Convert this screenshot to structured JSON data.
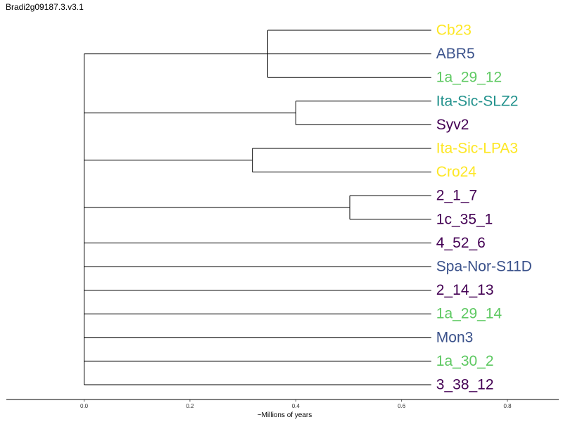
{
  "chart_data": {
    "type": "dendrogram",
    "title": "Bradi2g09187.3.v3.1",
    "xlabel": "~Millions of years",
    "xlim": [
      -0.147,
      0.897
    ],
    "xticks": [
      0.0,
      0.2,
      0.4,
      0.6,
      0.8
    ],
    "xtick_labels": [
      "0.0",
      "0.2",
      "0.4",
      "0.6",
      "0.8"
    ],
    "tip_depth": 0.656,
    "colors": {
      "yellow": "#fde725",
      "blue": "#3b528b",
      "green": "#5ec962",
      "teal": "#21918c",
      "purple": "#440154"
    },
    "tips": [
      {
        "label": "Cb23",
        "color": "#fde725"
      },
      {
        "label": "ABR5",
        "color": "#3b528b"
      },
      {
        "label": "1a_29_12",
        "color": "#5ec962"
      },
      {
        "label": "Ita-Sic-SLZ2",
        "color": "#21918c"
      },
      {
        "label": "Syv2",
        "color": "#440154"
      },
      {
        "label": "Ita-Sic-LPA3",
        "color": "#fde725"
      },
      {
        "label": "Cro24",
        "color": "#fde725"
      },
      {
        "label": "2_1_7",
        "color": "#440154"
      },
      {
        "label": "1c_35_1",
        "color": "#440154"
      },
      {
        "label": "4_52_6",
        "color": "#440154"
      },
      {
        "label": "Spa-Nor-S11D",
        "color": "#3b528b"
      },
      {
        "label": "2_14_13",
        "color": "#440154"
      },
      {
        "label": "1a_29_14",
        "color": "#5ec962"
      },
      {
        "label": "Mon3",
        "color": "#3b528b"
      },
      {
        "label": "1a_30_2",
        "color": "#5ec962"
      },
      {
        "label": "3_38_12",
        "color": "#440154"
      }
    ],
    "clades": [
      {
        "node_height": 0.347,
        "tips": [
          0,
          2
        ]
      },
      {
        "node_height": 0.4,
        "tips": [
          3,
          4
        ]
      },
      {
        "node_height": 0.318,
        "tips": [
          5,
          6
        ]
      },
      {
        "node_height": 0.502,
        "tips": [
          7,
          8
        ]
      }
    ],
    "root_height": 0.0
  }
}
